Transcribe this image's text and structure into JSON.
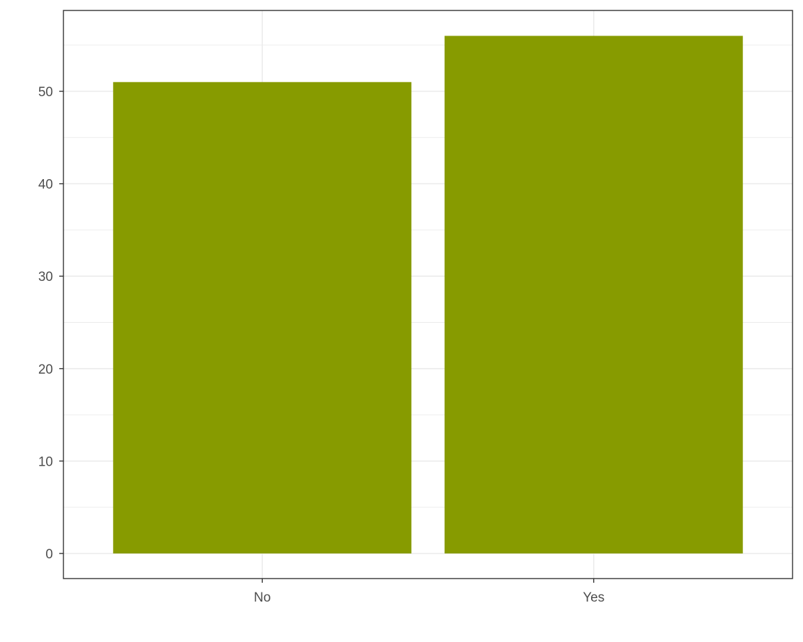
{
  "chart_data": {
    "type": "bar",
    "categories": [
      "No",
      "Yes"
    ],
    "values": [
      51,
      56
    ],
    "title": "",
    "xlabel": "",
    "ylabel": "",
    "ylim": [
      0,
      56
    ],
    "yticks": [
      0,
      10,
      20,
      30,
      40,
      50
    ],
    "grid": true,
    "legend": "none",
    "colors": {
      "bar": "#879b00",
      "grid": "#ebebeb",
      "border": "#333333",
      "background": "#ffffff"
    }
  }
}
